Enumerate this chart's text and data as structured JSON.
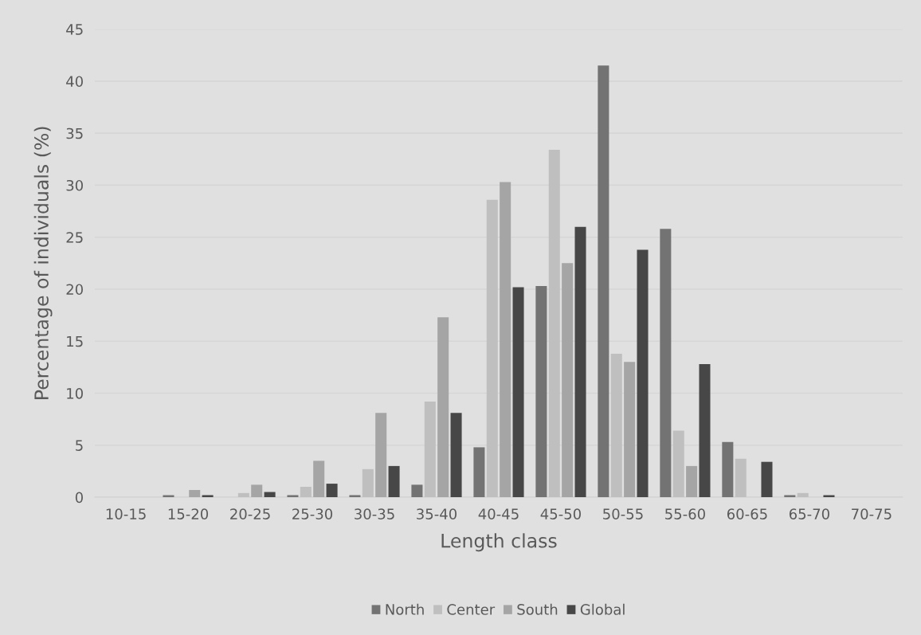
{
  "chart_data": {
    "type": "bar",
    "xlabel": "Length class",
    "ylabel": "Percentage of individuals (%)",
    "categories": [
      "10-15",
      "15-20",
      "20-25",
      "25-30",
      "30-35",
      "35-40",
      "40-45",
      "45-50",
      "50-55",
      "55-60",
      "60-65",
      "65-70",
      "70-75"
    ],
    "series": [
      {
        "name": "North",
        "color": "#737373",
        "values": [
          0,
          0.2,
          0,
          0.2,
          0.2,
          1.2,
          4.8,
          20.3,
          41.5,
          25.8,
          5.3,
          0.2,
          0
        ]
      },
      {
        "name": "Center",
        "color": "#bfbfbf",
        "values": [
          0,
          0,
          0.4,
          1.0,
          2.7,
          9.2,
          28.6,
          33.4,
          13.8,
          6.4,
          3.7,
          0.4,
          0
        ]
      },
      {
        "name": "South",
        "color": "#a5a5a5",
        "values": [
          0,
          0.7,
          1.2,
          3.5,
          8.1,
          17.3,
          30.3,
          22.5,
          13.0,
          3.0,
          0,
          0,
          0
        ]
      },
      {
        "name": "Global",
        "color": "#474747",
        "values": [
          0,
          0.2,
          0.5,
          1.3,
          3.0,
          8.1,
          20.2,
          26.0,
          23.8,
          12.8,
          3.4,
          0.2,
          0
        ]
      }
    ],
    "ylim": [
      0,
      45
    ],
    "yticks": [
      0,
      5,
      10,
      15,
      20,
      25,
      30,
      35,
      40,
      45
    ],
    "grid": "y",
    "legend": "bottom"
  }
}
